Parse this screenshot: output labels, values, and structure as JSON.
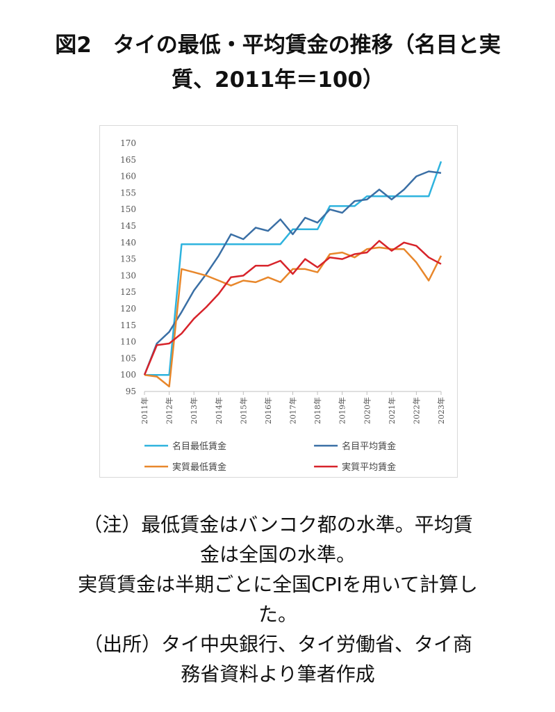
{
  "title": {
    "line1": "図2　タイの最低・平均賃金の推移（名目と実",
    "line2": "質、2011年＝100）"
  },
  "notes": {
    "line1": "（注）最低賃金はバンコク都の水準。平均賃",
    "line2": "金は全国の水準。",
    "line3": "実質賃金は半期ごとに全国CPIを用いて計算し",
    "line4": "た。",
    "line5": "（出所）タイ中央銀行、タイ労働省、タイ商",
    "line6": "務省資料より筆者作成"
  },
  "chart_data": {
    "type": "line",
    "title": "",
    "xlabel": "",
    "ylabel": "",
    "ylim": [
      95,
      170
    ],
    "yticks": [
      95,
      100,
      105,
      110,
      115,
      120,
      125,
      130,
      135,
      140,
      145,
      150,
      155,
      160,
      165,
      170
    ],
    "xlim": [
      2011,
      2023
    ],
    "xticks": [
      2011,
      2012,
      2013,
      2014,
      2015,
      2016,
      2017,
      2018,
      2019,
      2020,
      2021,
      2022,
      2023
    ],
    "xtick_labels": [
      "2011年",
      "2012年",
      "2013年",
      "2014年",
      "2015年",
      "2016年",
      "2017年",
      "2018年",
      "2019年",
      "2020年",
      "2021年",
      "2022年",
      "2023年"
    ],
    "grid": false,
    "legend_position": "bottom",
    "series": [
      {
        "name": "名目最低賃金",
        "color": "#2eb3de",
        "x": [
          2011,
          2012,
          2012.5,
          2013,
          2014,
          2015,
          2016,
          2016.5,
          2017,
          2018,
          2018.5,
          2019,
          2019.5,
          2020,
          2020.5,
          2021,
          2022,
          2022.5,
          2023
        ],
        "y": [
          100,
          100,
          139.5,
          139.5,
          139.5,
          139.5,
          139.5,
          139.5,
          144,
          144,
          151,
          151,
          151,
          154,
          154,
          154,
          154,
          154,
          164.5
        ]
      },
      {
        "name": "名目平均賃金",
        "color": "#3a6fa5",
        "x": [
          2011,
          2011.5,
          2012,
          2012.5,
          2013,
          2013.5,
          2014,
          2014.5,
          2015,
          2015.5,
          2016,
          2016.5,
          2017,
          2017.5,
          2018,
          2018.5,
          2019,
          2019.5,
          2020,
          2020.5,
          2021,
          2021.5,
          2022,
          2022.5,
          2023
        ],
        "y": [
          100,
          109.5,
          113,
          119,
          125.5,
          130.5,
          136,
          142.5,
          141,
          144.5,
          143.5,
          147,
          142.5,
          147.5,
          146,
          150,
          149,
          152.5,
          153,
          156,
          153,
          156,
          160,
          161.5,
          161
        ]
      },
      {
        "name": "実質最低賃金",
        "color": "#e8872b",
        "x": [
          2011,
          2011.5,
          2012,
          2012.5,
          2013,
          2013.5,
          2014,
          2014.5,
          2015,
          2015.5,
          2016,
          2016.5,
          2017,
          2017.5,
          2018,
          2018.5,
          2019,
          2019.5,
          2020,
          2020.5,
          2021,
          2021.5,
          2022,
          2022.5,
          2023
        ],
        "y": [
          100,
          99.5,
          96.5,
          132,
          131,
          130,
          128.5,
          127,
          128.5,
          128,
          129.5,
          128,
          132,
          132,
          131,
          136.5,
          137,
          135.5,
          138,
          138.5,
          138,
          138,
          134,
          128.5,
          136
        ]
      },
      {
        "name": "実質平均賃金",
        "color": "#d7232a",
        "x": [
          2011,
          2011.5,
          2012,
          2012.5,
          2013,
          2013.5,
          2014,
          2014.5,
          2015,
          2015.5,
          2016,
          2016.5,
          2017,
          2017.5,
          2018,
          2018.5,
          2019,
          2019.5,
          2020,
          2020.5,
          2021,
          2021.5,
          2022,
          2022.5,
          2023
        ],
        "y": [
          100,
          109,
          109.5,
          112.5,
          117,
          120.5,
          124.5,
          129.5,
          130,
          133,
          133,
          134.5,
          130.5,
          135,
          132.5,
          135.5,
          135,
          136.5,
          137,
          140.5,
          137.5,
          140,
          139,
          135.5,
          133.5
        ]
      }
    ]
  }
}
